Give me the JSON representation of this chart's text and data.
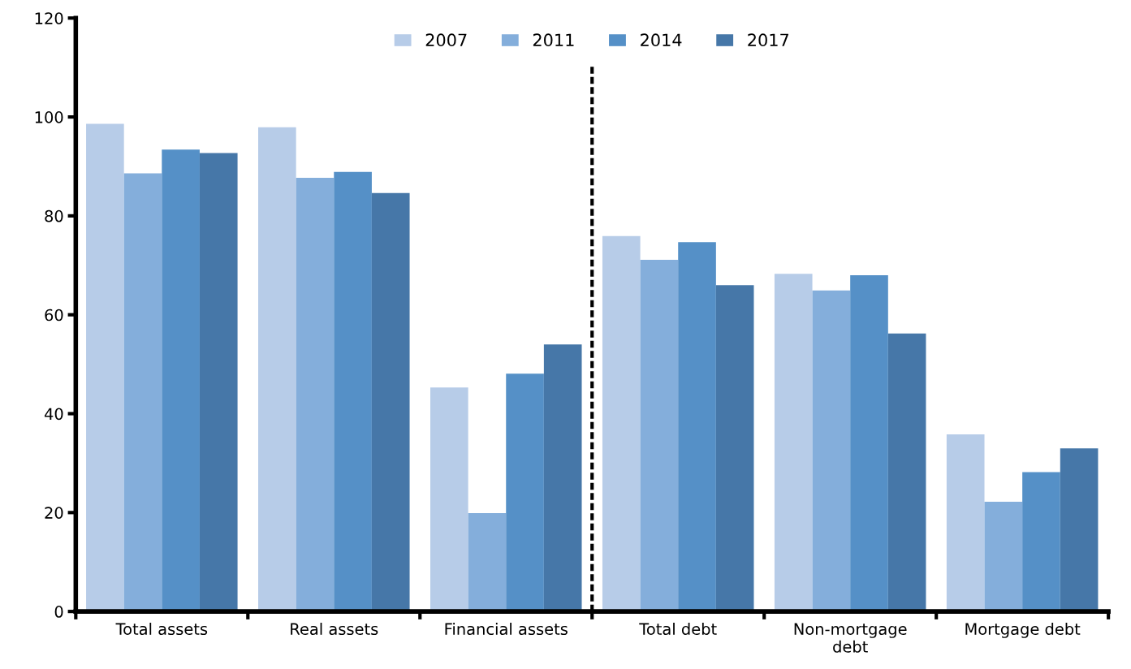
{
  "chart_data": {
    "type": "bar",
    "categories": [
      "Total assets",
      "Real assets",
      "Financial assets",
      "Total debt",
      "Non-mortgage\ndebt",
      "Mortgage debt"
    ],
    "series": [
      {
        "name": "2007",
        "color": "#b7cce8",
        "values": [
          98.6,
          97.9,
          45.3,
          75.9,
          68.3,
          35.8
        ]
      },
      {
        "name": "2011",
        "color": "#84aedb",
        "values": [
          88.6,
          87.7,
          19.9,
          71.1,
          64.9,
          22.2
        ]
      },
      {
        "name": "2014",
        "color": "#5590c7",
        "values": [
          93.4,
          88.9,
          48.1,
          74.7,
          68.0,
          28.2
        ]
      },
      {
        "name": "2017",
        "color": "#4677a8",
        "values": [
          92.7,
          84.6,
          54.0,
          66.0,
          56.2,
          33.0
        ]
      }
    ],
    "ylim": [
      0,
      120
    ],
    "yticks": [
      0,
      20,
      40,
      60,
      80,
      100,
      120
    ],
    "grid": false,
    "legend": "top"
  }
}
